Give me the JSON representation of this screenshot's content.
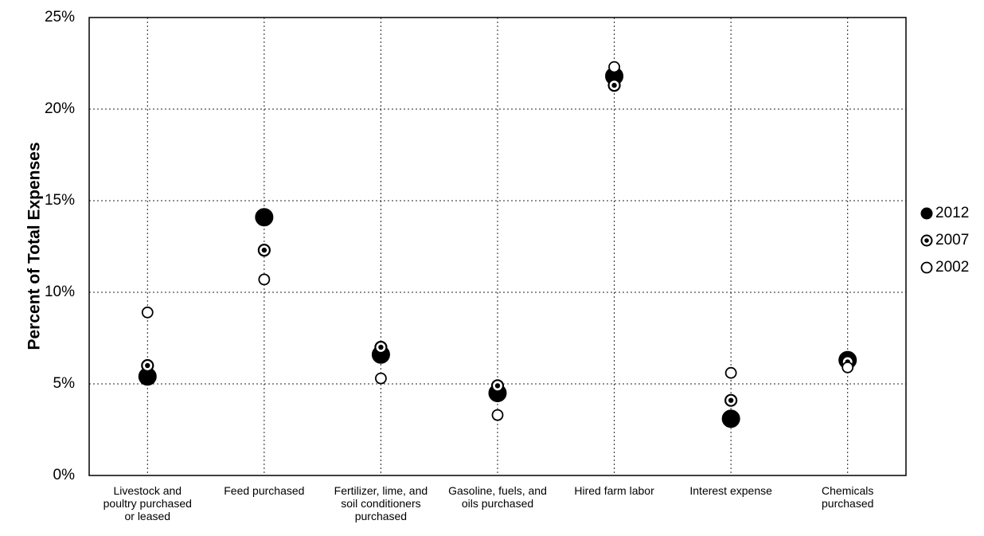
{
  "chart_data": {
    "type": "scatter",
    "title": "",
    "xlabel": "",
    "ylabel": "Percent of Total Expenses",
    "ylim": [
      0,
      25
    ],
    "yticks": [
      "0%",
      "5%",
      "10%",
      "15%",
      "20%",
      "25%"
    ],
    "ytick_values": [
      0,
      5,
      10,
      15,
      20,
      25
    ],
    "grid": true,
    "legend_position": "right",
    "categories": [
      [
        "Livestock and",
        "poultry purchased",
        "or leased"
      ],
      [
        "Feed purchased"
      ],
      [
        "Fertilizer, lime, and",
        "soil conditioners",
        "purchased"
      ],
      [
        "Gasoline, fuels, and",
        "oils purchased"
      ],
      [
        "Hired farm labor"
      ],
      [
        "Interest expense"
      ],
      [
        "Chemicals",
        "purchased"
      ]
    ],
    "series": [
      {
        "name": "2012",
        "marker": "filled-large",
        "values": [
          5.4,
          14.1,
          6.6,
          4.5,
          21.8,
          3.1,
          6.3
        ]
      },
      {
        "name": "2007",
        "marker": "dotted-ring",
        "values": [
          6.0,
          12.3,
          7.0,
          4.9,
          21.3,
          4.1,
          6.2
        ]
      },
      {
        "name": "2002",
        "marker": "hollow",
        "values": [
          8.9,
          10.7,
          5.3,
          3.3,
          22.3,
          5.6,
          5.9
        ]
      }
    ],
    "colors": {
      "marker": "#000000",
      "marker_fill_hollow": "#ffffff"
    }
  }
}
